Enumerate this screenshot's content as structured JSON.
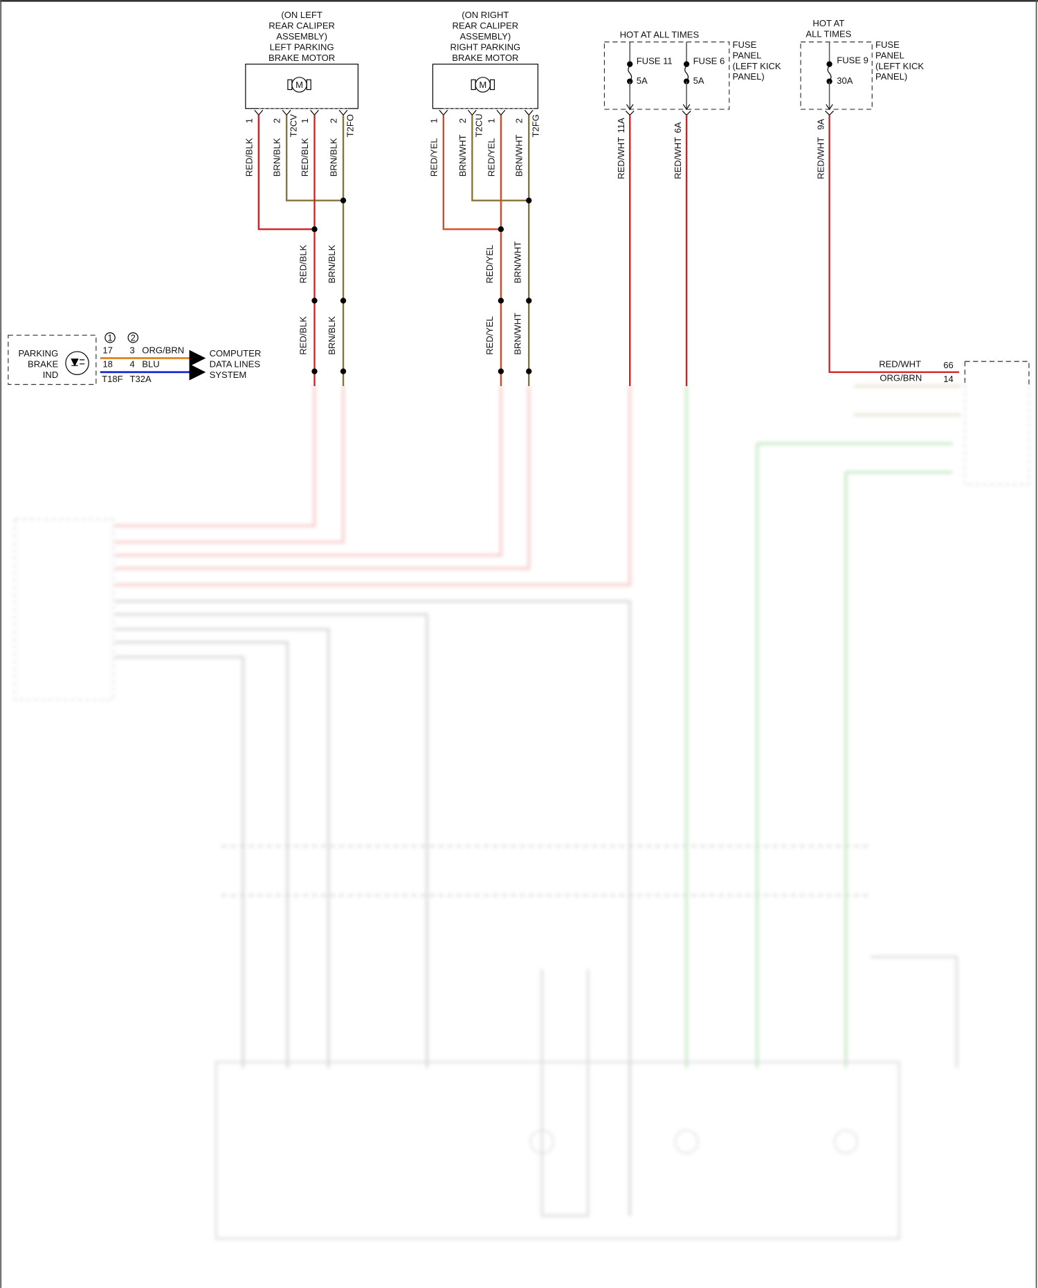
{
  "left_motor": {
    "label_lines": [
      "(ON LEFT",
      "REAR CALIPER",
      "ASSEMBLY)",
      "LEFT PARKING",
      "BRAKE MOTOR"
    ],
    "symbol": "M",
    "pins": [
      "1",
      "2",
      "1",
      "2"
    ],
    "connectors": [
      "T2CV",
      "T2FO"
    ],
    "wires": [
      "RED/BLK",
      "BRN/BLK",
      "RED/BLK",
      "BRN/BLK"
    ],
    "mid_wires": [
      "RED/BLK",
      "BRN/BLK"
    ],
    "low_wires": [
      "RED/BLK",
      "BRN/BLK"
    ]
  },
  "right_motor": {
    "label_lines": [
      "(ON RIGHT",
      "REAR CALIPER",
      "ASSEMBLY)",
      "RIGHT PARKING",
      "BRAKE MOTOR"
    ],
    "symbol": "M",
    "pins": [
      "1",
      "2",
      "1",
      "2"
    ],
    "connectors": [
      "T2CU",
      "T2FG"
    ],
    "wires": [
      "RED/YEL",
      "BRN/WHT",
      "RED/YEL",
      "BRN/WHT"
    ],
    "mid_wires": [
      "RED/YEL",
      "BRN/WHT"
    ],
    "low_wires": [
      "RED/YEL",
      "BRN/WHT"
    ]
  },
  "fuse_panel_1": {
    "header": "HOT AT ALL TIMES",
    "panel_lines": [
      "FUSE",
      "PANEL",
      "(LEFT KICK",
      "PANEL)"
    ],
    "fuses": [
      {
        "name": "FUSE 11",
        "rating": "5A",
        "wire": "RED/WHT",
        "pin": "11A"
      },
      {
        "name": "FUSE 6",
        "rating": "5A",
        "wire": "RED/WHT",
        "pin": "6A"
      }
    ]
  },
  "fuse_panel_2": {
    "header_lines": [
      "HOT AT",
      "ALL TIMES"
    ],
    "panel_lines": [
      "FUSE",
      "PANEL",
      "(LEFT KICK",
      "PANEL)"
    ],
    "fuse": {
      "name": "FUSE 9",
      "rating": "30A",
      "wire": "RED/WHT",
      "pin": "9A"
    }
  },
  "right_module": {
    "rows": [
      {
        "wire": "RED/WHT",
        "pin": "66"
      },
      {
        "wire": "ORG/BRN",
        "pin": "14"
      }
    ]
  },
  "indicator": {
    "label_lines": [
      "PARKING",
      "BRAKE",
      "IND"
    ],
    "variant_marks": [
      "1",
      "2"
    ],
    "rows": [
      {
        "pin1": "17",
        "pin2": "3",
        "wire": "ORG/BRN"
      },
      {
        "pin1": "18",
        "pin2": "4",
        "wire": "BLU"
      }
    ],
    "connectors": [
      "T18F",
      "T32A"
    ],
    "destination_lines": [
      "COMPUTER",
      "DATA LINES",
      "SYSTEM"
    ]
  },
  "colors": {
    "red": "#d42020",
    "red_yellow": "#e2461e",
    "brown": "#857534",
    "orange": "#e08a2c",
    "blue": "#1d2fd0",
    "green": "#7ccf5a",
    "gray": "#555555"
  }
}
